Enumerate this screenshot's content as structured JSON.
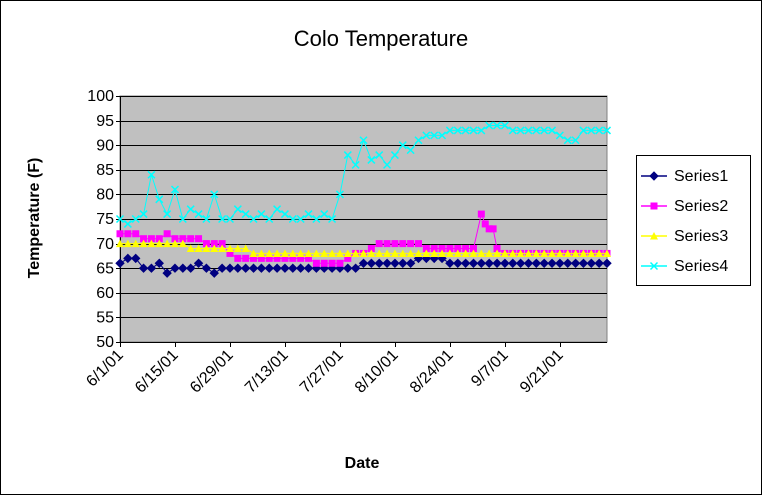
{
  "chart_data": {
    "type": "scatter",
    "title": "Colo Temperature",
    "xlabel": "Date",
    "ylabel": "Temperature (F)",
    "ylim": [
      50,
      100
    ],
    "yticks": [
      50,
      55,
      60,
      65,
      70,
      75,
      80,
      85,
      90,
      95,
      100
    ],
    "xlim": [
      "6/1/01",
      "10/3/01"
    ],
    "xticks": [
      "6/1/01",
      "6/15/01",
      "6/29/01",
      "7/13/01",
      "7/27/01",
      "8/10/01",
      "8/24/01",
      "9/7/01",
      "9/21/01"
    ],
    "grid": true,
    "legend_position": "right",
    "series": [
      {
        "name": "Series1",
        "color": "#000080",
        "marker": "diamond",
        "points": [
          [
            "6/1/01",
            66
          ],
          [
            "6/3/01",
            67
          ],
          [
            "6/5/01",
            67
          ],
          [
            "6/7/01",
            65
          ],
          [
            "6/9/01",
            65
          ],
          [
            "6/11/01",
            66
          ],
          [
            "6/13/01",
            64
          ],
          [
            "6/15/01",
            65
          ],
          [
            "6/17/01",
            65
          ],
          [
            "6/19/01",
            65
          ],
          [
            "6/21/01",
            66
          ],
          [
            "6/23/01",
            65
          ],
          [
            "6/25/01",
            64
          ],
          [
            "6/27/01",
            65
          ],
          [
            "6/29/01",
            65
          ],
          [
            "7/1/01",
            65
          ],
          [
            "7/3/01",
            65
          ],
          [
            "7/5/01",
            65
          ],
          [
            "7/7/01",
            65
          ],
          [
            "7/9/01",
            65
          ],
          [
            "7/11/01",
            65
          ],
          [
            "7/13/01",
            65
          ],
          [
            "7/15/01",
            65
          ],
          [
            "7/17/01",
            65
          ],
          [
            "7/19/01",
            65
          ],
          [
            "7/21/01",
            65
          ],
          [
            "7/23/01",
            65
          ],
          [
            "7/25/01",
            65
          ],
          [
            "7/27/01",
            65
          ],
          [
            "7/29/01",
            65
          ],
          [
            "7/31/01",
            65
          ],
          [
            "8/2/01",
            66
          ],
          [
            "8/4/01",
            66
          ],
          [
            "8/6/01",
            66
          ],
          [
            "8/8/01",
            66
          ],
          [
            "8/10/01",
            66
          ],
          [
            "8/12/01",
            66
          ],
          [
            "8/14/01",
            66
          ],
          [
            "8/16/01",
            67
          ],
          [
            "8/18/01",
            67
          ],
          [
            "8/20/01",
            67
          ],
          [
            "8/22/01",
            67
          ],
          [
            "8/24/01",
            66
          ],
          [
            "8/26/01",
            66
          ],
          [
            "8/28/01",
            66
          ],
          [
            "8/30/01",
            66
          ],
          [
            "9/1/01",
            66
          ],
          [
            "9/3/01",
            66
          ],
          [
            "9/5/01",
            66
          ],
          [
            "9/7/01",
            66
          ],
          [
            "9/9/01",
            66
          ],
          [
            "9/11/01",
            66
          ],
          [
            "9/13/01",
            66
          ],
          [
            "9/15/01",
            66
          ],
          [
            "9/17/01",
            66
          ],
          [
            "9/19/01",
            66
          ],
          [
            "9/21/01",
            66
          ],
          [
            "9/23/01",
            66
          ],
          [
            "9/25/01",
            66
          ],
          [
            "9/27/01",
            66
          ],
          [
            "9/29/01",
            66
          ],
          [
            "10/1/01",
            66
          ],
          [
            "10/3/01",
            66
          ]
        ]
      },
      {
        "name": "Series2",
        "color": "#ff00ff",
        "marker": "square",
        "points": [
          [
            "6/1/01",
            72
          ],
          [
            "6/3/01",
            72
          ],
          [
            "6/5/01",
            72
          ],
          [
            "6/7/01",
            71
          ],
          [
            "6/9/01",
            71
          ],
          [
            "6/11/01",
            71
          ],
          [
            "6/13/01",
            72
          ],
          [
            "6/15/01",
            71
          ],
          [
            "6/17/01",
            71
          ],
          [
            "6/19/01",
            71
          ],
          [
            "6/21/01",
            71
          ],
          [
            "6/23/01",
            70
          ],
          [
            "6/25/01",
            70
          ],
          [
            "6/27/01",
            70
          ],
          [
            "6/29/01",
            68
          ],
          [
            "7/1/01",
            67
          ],
          [
            "7/3/01",
            67
          ],
          [
            "7/5/01",
            67
          ],
          [
            "7/7/01",
            67
          ],
          [
            "7/9/01",
            67
          ],
          [
            "7/11/01",
            67
          ],
          [
            "7/13/01",
            67
          ],
          [
            "7/15/01",
            67
          ],
          [
            "7/17/01",
            67
          ],
          [
            "7/19/01",
            67
          ],
          [
            "7/21/01",
            66
          ],
          [
            "7/23/01",
            66
          ],
          [
            "7/25/01",
            66
          ],
          [
            "7/27/01",
            66
          ],
          [
            "7/29/01",
            67
          ],
          [
            "7/31/01",
            68
          ],
          [
            "8/2/01",
            68
          ],
          [
            "8/4/01",
            69
          ],
          [
            "8/6/01",
            70
          ],
          [
            "8/8/01",
            70
          ],
          [
            "8/10/01",
            70
          ],
          [
            "8/12/01",
            70
          ],
          [
            "8/14/01",
            70
          ],
          [
            "8/16/01",
            70
          ],
          [
            "8/18/01",
            69
          ],
          [
            "8/20/01",
            69
          ],
          [
            "8/22/01",
            69
          ],
          [
            "8/24/01",
            69
          ],
          [
            "8/26/01",
            69
          ],
          [
            "8/28/01",
            69
          ],
          [
            "8/30/01",
            69
          ],
          [
            "9/1/01",
            76
          ],
          [
            "9/2/01",
            74
          ],
          [
            "9/3/01",
            73
          ],
          [
            "9/4/01",
            73
          ],
          [
            "9/5/01",
            69
          ],
          [
            "9/7/01",
            68
          ],
          [
            "9/9/01",
            68
          ],
          [
            "9/11/01",
            68
          ],
          [
            "9/13/01",
            68
          ],
          [
            "9/15/01",
            68
          ],
          [
            "9/17/01",
            68
          ],
          [
            "9/19/01",
            68
          ],
          [
            "9/21/01",
            68
          ],
          [
            "9/23/01",
            68
          ],
          [
            "9/25/01",
            68
          ],
          [
            "9/27/01",
            68
          ],
          [
            "9/29/01",
            68
          ],
          [
            "10/1/01",
            68
          ],
          [
            "10/3/01",
            68
          ]
        ]
      },
      {
        "name": "Series3",
        "color": "#ffff00",
        "marker": "triangle",
        "points": [
          [
            "6/1/01",
            70
          ],
          [
            "6/3/01",
            70
          ],
          [
            "6/5/01",
            70
          ],
          [
            "6/7/01",
            70
          ],
          [
            "6/9/01",
            70
          ],
          [
            "6/11/01",
            70
          ],
          [
            "6/13/01",
            70
          ],
          [
            "6/15/01",
            70
          ],
          [
            "6/17/01",
            70
          ],
          [
            "6/19/01",
            69
          ],
          [
            "6/21/01",
            69
          ],
          [
            "6/23/01",
            69
          ],
          [
            "6/25/01",
            69
          ],
          [
            "6/27/01",
            69
          ],
          [
            "6/29/01",
            69
          ],
          [
            "7/1/01",
            69
          ],
          [
            "7/3/01",
            69
          ],
          [
            "7/5/01",
            68
          ],
          [
            "7/7/01",
            68
          ],
          [
            "7/9/01",
            68
          ],
          [
            "7/11/01",
            68
          ],
          [
            "7/13/01",
            68
          ],
          [
            "7/15/01",
            68
          ],
          [
            "7/17/01",
            68
          ],
          [
            "7/19/01",
            68
          ],
          [
            "7/21/01",
            68
          ],
          [
            "7/23/01",
            68
          ],
          [
            "7/25/01",
            68
          ],
          [
            "7/27/01",
            68
          ],
          [
            "7/29/01",
            68
          ],
          [
            "7/31/01",
            68
          ],
          [
            "8/2/01",
            68
          ],
          [
            "8/4/01",
            68
          ],
          [
            "8/6/01",
            68
          ],
          [
            "8/8/01",
            68
          ],
          [
            "8/10/01",
            68
          ],
          [
            "8/12/01",
            68
          ],
          [
            "8/14/01",
            68
          ],
          [
            "8/16/01",
            68
          ],
          [
            "8/18/01",
            68
          ],
          [
            "8/20/01",
            68
          ],
          [
            "8/22/01",
            68
          ],
          [
            "8/24/01",
            68
          ],
          [
            "8/26/01",
            68
          ],
          [
            "8/28/01",
            68
          ],
          [
            "8/30/01",
            68
          ],
          [
            "9/1/01",
            68
          ],
          [
            "9/3/01",
            68
          ],
          [
            "9/5/01",
            68
          ],
          [
            "9/7/01",
            68
          ],
          [
            "9/9/01",
            68
          ],
          [
            "9/11/01",
            68
          ],
          [
            "9/13/01",
            68
          ],
          [
            "9/15/01",
            68
          ],
          [
            "9/17/01",
            68
          ],
          [
            "9/19/01",
            68
          ],
          [
            "9/21/01",
            68
          ],
          [
            "9/23/01",
            68
          ],
          [
            "9/25/01",
            68
          ],
          [
            "9/27/01",
            68
          ],
          [
            "9/29/01",
            68
          ],
          [
            "10/1/01",
            68
          ],
          [
            "10/3/01",
            68
          ]
        ]
      },
      {
        "name": "Series4",
        "color": "#00ffff",
        "marker": "x",
        "points": [
          [
            "6/1/01",
            75
          ],
          [
            "6/3/01",
            74
          ],
          [
            "6/5/01",
            75
          ],
          [
            "6/7/01",
            76
          ],
          [
            "6/9/01",
            84
          ],
          [
            "6/11/01",
            79
          ],
          [
            "6/13/01",
            76
          ],
          [
            "6/15/01",
            81
          ],
          [
            "6/17/01",
            75
          ],
          [
            "6/19/01",
            77
          ],
          [
            "6/21/01",
            76
          ],
          [
            "6/23/01",
            75
          ],
          [
            "6/25/01",
            80
          ],
          [
            "6/27/01",
            75
          ],
          [
            "6/29/01",
            75
          ],
          [
            "7/1/01",
            77
          ],
          [
            "7/3/01",
            76
          ],
          [
            "7/5/01",
            75
          ],
          [
            "7/7/01",
            76
          ],
          [
            "7/9/01",
            75
          ],
          [
            "7/11/01",
            77
          ],
          [
            "7/13/01",
            76
          ],
          [
            "7/15/01",
            75
          ],
          [
            "7/17/01",
            75
          ],
          [
            "7/19/01",
            76
          ],
          [
            "7/21/01",
            75
          ],
          [
            "7/23/01",
            76
          ],
          [
            "7/25/01",
            75
          ],
          [
            "7/27/01",
            80
          ],
          [
            "7/29/01",
            88
          ],
          [
            "7/31/01",
            86
          ],
          [
            "8/2/01",
            91
          ],
          [
            "8/4/01",
            87
          ],
          [
            "8/6/01",
            88
          ],
          [
            "8/8/01",
            86
          ],
          [
            "8/10/01",
            88
          ],
          [
            "8/12/01",
            90
          ],
          [
            "8/14/01",
            89
          ],
          [
            "8/16/01",
            91
          ],
          [
            "8/18/01",
            92
          ],
          [
            "8/20/01",
            92
          ],
          [
            "8/22/01",
            92
          ],
          [
            "8/24/01",
            93
          ],
          [
            "8/26/01",
            93
          ],
          [
            "8/28/01",
            93
          ],
          [
            "8/30/01",
            93
          ],
          [
            "9/1/01",
            93
          ],
          [
            "9/3/01",
            94
          ],
          [
            "9/5/01",
            94
          ],
          [
            "9/7/01",
            94
          ],
          [
            "9/9/01",
            93
          ],
          [
            "9/11/01",
            93
          ],
          [
            "9/13/01",
            93
          ],
          [
            "9/15/01",
            93
          ],
          [
            "9/17/01",
            93
          ],
          [
            "9/19/01",
            93
          ],
          [
            "9/21/01",
            92
          ],
          [
            "9/23/01",
            91
          ],
          [
            "9/25/01",
            91
          ],
          [
            "9/27/01",
            93
          ],
          [
            "9/29/01",
            93
          ],
          [
            "10/1/01",
            93
          ],
          [
            "10/3/01",
            93
          ]
        ]
      }
    ]
  }
}
